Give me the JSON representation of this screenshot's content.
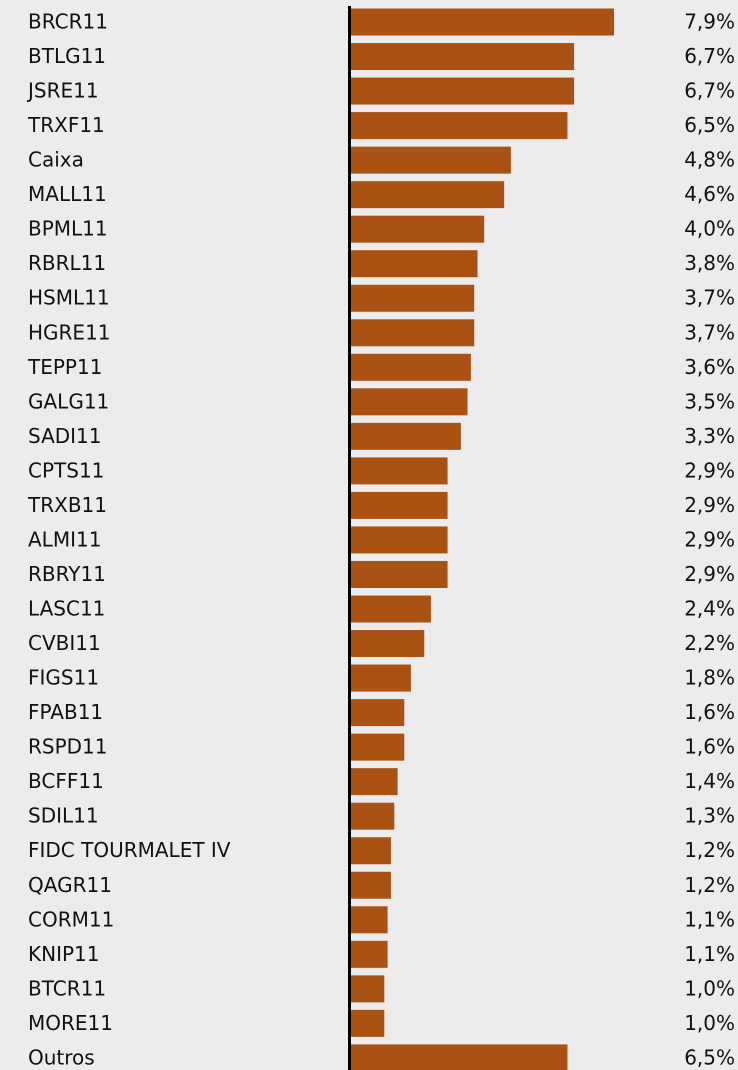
{
  "chart_data": {
    "type": "bar",
    "orientation": "horizontal",
    "color": "#a95213",
    "categories": [
      "BRCR11",
      "BTLG11",
      "JSRE11",
      "TRXF11",
      "Caixa",
      "MALL11",
      "BPML11",
      "RBRL11",
      "HSML11",
      "HGRE11",
      "TEPP11",
      "GALG11",
      "SADI11",
      "CPTS11",
      "TRXB11",
      "ALMI11",
      "RBRY11",
      "LASC11",
      "CVBI11",
      "FIGS11",
      "FPAB11",
      "RSPD11",
      "BCFF11",
      "SDIL11",
      "FIDC TOURMALET IV",
      "QAGR11",
      "CORM11",
      "KNIP11",
      "BTCR11",
      "MORE11",
      "Outros"
    ],
    "values": [
      7.9,
      6.7,
      6.7,
      6.5,
      4.8,
      4.6,
      4.0,
      3.8,
      3.7,
      3.7,
      3.6,
      3.5,
      3.3,
      2.9,
      2.9,
      2.9,
      2.9,
      2.4,
      2.2,
      1.8,
      1.6,
      1.6,
      1.4,
      1.3,
      1.2,
      1.2,
      1.1,
      1.1,
      1.0,
      1.0,
      6.5
    ],
    "value_labels": [
      "7,9%",
      "6,7%",
      "6,7%",
      "6,5%",
      "4,8%",
      "4,6%",
      "4,0%",
      "3,8%",
      "3,7%",
      "3,7%",
      "3,6%",
      "3,5%",
      "3,3%",
      "2,9%",
      "2,9%",
      "2,9%",
      "2,9%",
      "2,4%",
      "2,2%",
      "1,8%",
      "1,6%",
      "1,6%",
      "1,4%",
      "1,3%",
      "1,2%",
      "1,2%",
      "1,1%",
      "1,1%",
      "1,0%",
      "1,0%",
      "6,5%"
    ]
  }
}
